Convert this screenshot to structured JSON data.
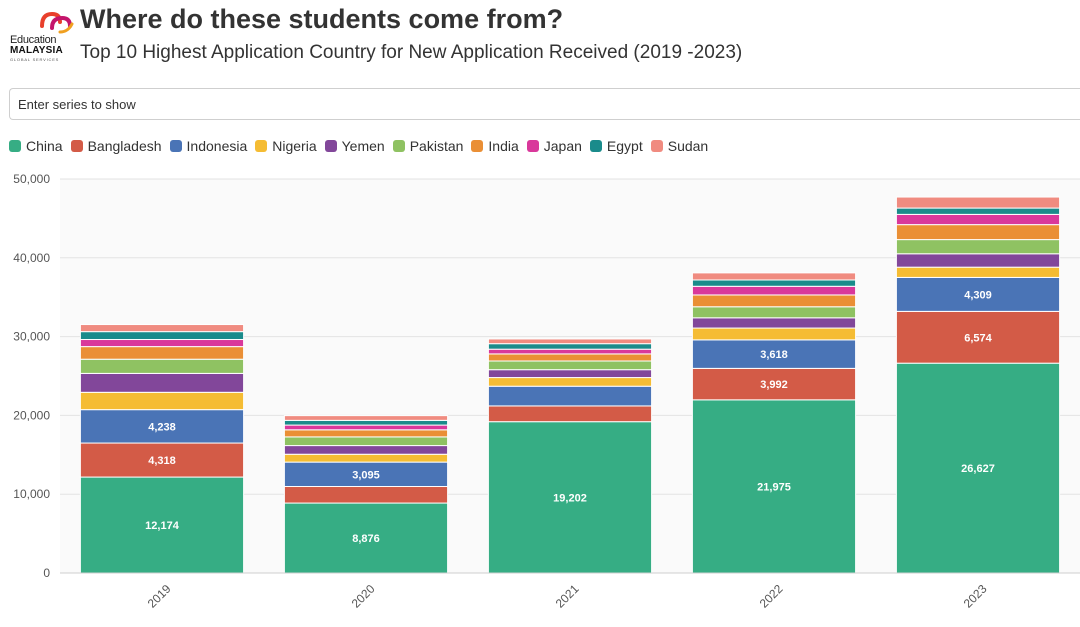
{
  "header": {
    "logo": {
      "word1": "Education",
      "word2": "MALAYSIA",
      "word3": "GLOBAL SERVICES",
      "colors": [
        "#e8402c",
        "#c4156b",
        "#f0a020"
      ]
    },
    "title": "Where do these students come from?",
    "subtitle": "Top 10 Highest Application Country for New Application Received (2019 -2023)"
  },
  "controls": {
    "series_search_placeholder": "Enter series to show"
  },
  "chart_data": {
    "type": "bar",
    "stacked": true,
    "categories": [
      "2019",
      "2020",
      "2021",
      "2022",
      "2023"
    ],
    "ylim": [
      0,
      50000
    ],
    "yticks": [
      0,
      10000,
      20000,
      30000,
      40000,
      50000
    ],
    "ytick_labels": [
      "0",
      "10,000",
      "20,000",
      "30,000",
      "40,000",
      "50,000"
    ],
    "grid": true,
    "legend_position": "top-left",
    "x_tick_rotation": "-45deg",
    "series": [
      {
        "name": "China",
        "color": "#36ad84",
        "values": [
          12174,
          8876,
          19202,
          21975,
          26627
        ],
        "labels": [
          "12,174",
          "8,876",
          "19,202",
          "21,975",
          "26,627"
        ]
      },
      {
        "name": "Bangladesh",
        "color": "#d35b47",
        "values": [
          4318,
          2100,
          2000,
          3992,
          6574
        ],
        "labels": [
          "4,318",
          "",
          "",
          "3,992",
          "6,574"
        ]
      },
      {
        "name": "Indonesia",
        "color": "#4a74b6",
        "values": [
          4238,
          3095,
          2500,
          3618,
          4309
        ],
        "labels": [
          "4,238",
          "3,095",
          "",
          "3,618",
          "4,309"
        ]
      },
      {
        "name": "Nigeria",
        "color": "#f5bc33",
        "values": [
          2200,
          1000,
          1100,
          1500,
          1300
        ],
        "labels": [
          "",
          "",
          "",
          "",
          ""
        ]
      },
      {
        "name": "Yemen",
        "color": "#82479a",
        "values": [
          2400,
          1100,
          1000,
          1300,
          1700
        ],
        "labels": [
          "",
          "",
          "",
          "",
          ""
        ]
      },
      {
        "name": "Pakistan",
        "color": "#8fc262",
        "values": [
          1800,
          1100,
          1100,
          1400,
          1800
        ],
        "labels": [
          "",
          "",
          "",
          "",
          ""
        ]
      },
      {
        "name": "India",
        "color": "#ea8f35",
        "values": [
          1600,
          900,
          900,
          1500,
          1900
        ],
        "labels": [
          "",
          "",
          "",
          "",
          ""
        ]
      },
      {
        "name": "Japan",
        "color": "#d9389b",
        "values": [
          900,
          600,
          600,
          1100,
          1300
        ],
        "labels": [
          "",
          "",
          "",
          "",
          ""
        ]
      },
      {
        "name": "Egypt",
        "color": "#1a8b8b",
        "values": [
          1000,
          600,
          700,
          800,
          800
        ],
        "labels": [
          "",
          "",
          "",
          "",
          ""
        ]
      },
      {
        "name": "Sudan",
        "color": "#f08b80",
        "values": [
          900,
          600,
          600,
          900,
          1400
        ],
        "labels": [
          "",
          "",
          "",
          "",
          ""
        ]
      }
    ]
  }
}
